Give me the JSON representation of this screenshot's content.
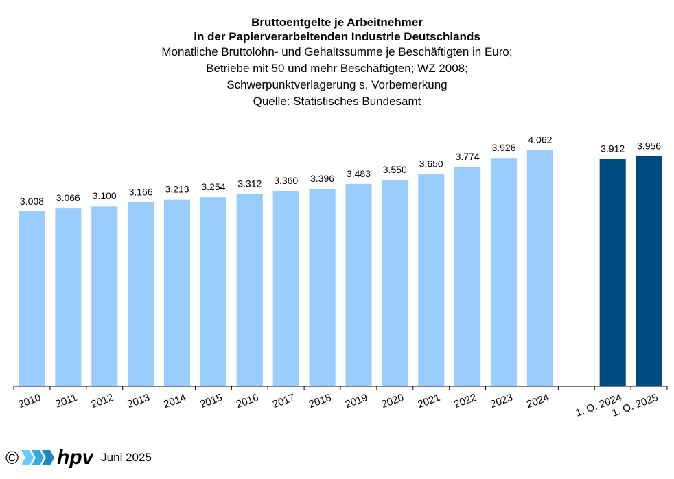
{
  "chart_data": {
    "type": "bar",
    "title_lines": [
      "Bruttoentgelte je Arbeitnehmer",
      "in der Papierverarbeitenden Industrie Deutschlands"
    ],
    "subtitle_lines": [
      "Monatliche Bruttolohn- und Gehaltssumme je Beschäftigten in Euro;",
      "Betriebe mit 50 und mehr Beschäftigten; WZ 2008;",
      "Schwerpunktverlagerung s. Vorbemerkung",
      "Quelle: Statistisches Bundesamt"
    ],
    "categories": [
      "2010",
      "2011",
      "2012",
      "2013",
      "2014",
      "2015",
      "2016",
      "2017",
      "2018",
      "2019",
      "2020",
      "2021",
      "2022",
      "2023",
      "2024",
      "",
      "1. Q. 2024",
      "1. Q. 2025"
    ],
    "values": [
      3008,
      3066,
      3100,
      3166,
      3213,
      3254,
      3312,
      3360,
      3396,
      3483,
      3550,
      3650,
      3774,
      3926,
      4062,
      null,
      3912,
      3956
    ],
    "value_labels": [
      "3.008",
      "3.066",
      "3.100",
      "3.166",
      "3.213",
      "3.254",
      "3.312",
      "3.360",
      "3.396",
      "3.483",
      "3.550",
      "3.650",
      "3.774",
      "3.926",
      "4.062",
      "",
      "3.912",
      "3.956"
    ],
    "bar_colors": [
      "#99ccff",
      "#99ccff",
      "#99ccff",
      "#99ccff",
      "#99ccff",
      "#99ccff",
      "#99ccff",
      "#99ccff",
      "#99ccff",
      "#99ccff",
      "#99ccff",
      "#99ccff",
      "#99ccff",
      "#99ccff",
      "#99ccff",
      "",
      "#004a80",
      "#004a80"
    ],
    "ylim": [
      0,
      4200
    ],
    "grid": false,
    "legend": "none"
  },
  "footer": {
    "copyright": "©",
    "logo_text": "hpv",
    "date": "Juni 2025"
  }
}
